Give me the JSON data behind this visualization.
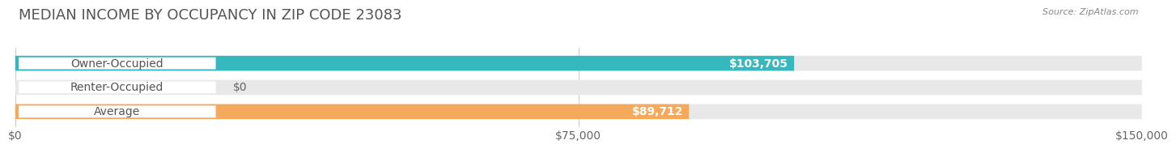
{
  "title": "MEDIAN INCOME BY OCCUPANCY IN ZIP CODE 23083",
  "source": "Source: ZipAtlas.com",
  "categories": [
    "Owner-Occupied",
    "Renter-Occupied",
    "Average"
  ],
  "values": [
    103705,
    0,
    89712
  ],
  "bar_colors": [
    "#35b8be",
    "#c5a8d0",
    "#f5a95c"
  ],
  "label_texts": [
    "$103,705",
    "$0",
    "$89,712"
  ],
  "xlim": [
    0,
    150000
  ],
  "xticks": [
    0,
    75000,
    150000
  ],
  "xtick_labels": [
    "$0",
    "$75,000",
    "$150,000"
  ],
  "background_color": "#ffffff",
  "bar_bg": "#e8e8e8",
  "bar_gap_color": "#f5f5f5",
  "title_fontsize": 13,
  "tick_fontsize": 10,
  "bar_height": 0.62,
  "label_fontsize": 10,
  "pill_text_color": "#555555",
  "value_text_color": "#ffffff",
  "zero_value_text_color": "#666666"
}
